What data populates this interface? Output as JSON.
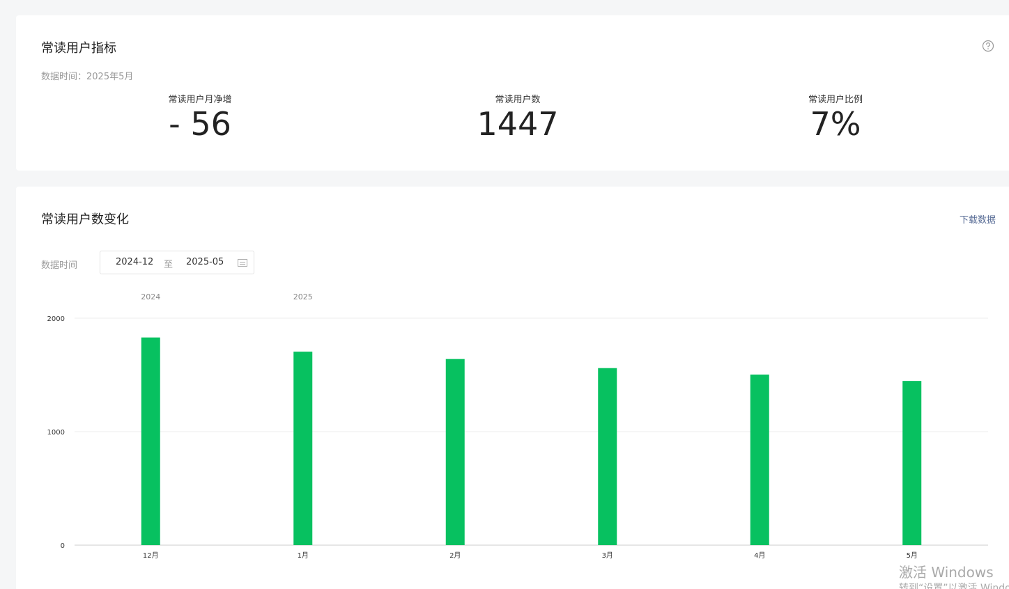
{
  "metrics_card": {
    "title": "常读用户指标",
    "data_time": "数据时间：2025年5月",
    "metrics": [
      {
        "label": "常读用户月净增",
        "value": "- 56"
      },
      {
        "label": "常读用户数",
        "value": "1447"
      },
      {
        "label": "常读用户比例",
        "value": "7%"
      }
    ]
  },
  "trend_card": {
    "title": "常读用户数变化",
    "download": "下载数据",
    "filter_label": "数据时间",
    "date_from": "2024-12",
    "date_sep": "至",
    "date_to": "2025-05"
  },
  "chart_data": {
    "type": "bar",
    "categories": [
      "12月",
      "1月",
      "2月",
      "3月",
      "4月",
      "5月"
    ],
    "year_labels": [
      "2024",
      "2025",
      null,
      null,
      null,
      null
    ],
    "values": [
      1830,
      1705,
      1640,
      1560,
      1503,
      1447
    ],
    "color": "#07c160",
    "ylim": [
      0,
      2000
    ],
    "yticks": [
      0,
      1000,
      2000
    ],
    "grid": true
  },
  "watermark": {
    "line1": "激活 Windows",
    "line2": "转到“设置”以激活 Windows。"
  }
}
